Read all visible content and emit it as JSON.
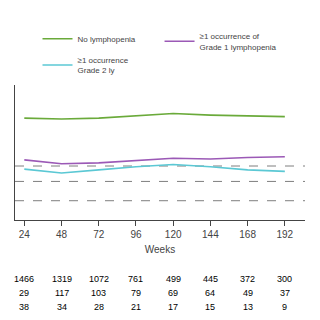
{
  "chart_data": {
    "type": "line",
    "x": [
      24,
      48,
      72,
      96,
      120,
      144,
      168,
      192
    ],
    "series": [
      {
        "name": "No lymphopenia",
        "color": "#6aaa3a",
        "values": [
          1.62,
          1.61,
          1.62,
          1.65,
          1.68,
          1.66,
          1.65,
          1.64
        ]
      },
      {
        "name": "≥1 occurrence of\nGrade 1 lymphopenia",
        "color": "#9b59b6",
        "values": [
          1.08,
          1.03,
          1.04,
          1.07,
          1.1,
          1.09,
          1.11,
          1.12
        ]
      },
      {
        "name": "≥1 occurrence\nGrade 2 ly",
        "color": "#5bc8d4",
        "values": [
          0.96,
          0.91,
          0.95,
          0.99,
          1.02,
          0.99,
          0.95,
          0.93
        ]
      }
    ],
    "reference_lines": {
      "values": [
        1.0,
        0.8,
        0.55
      ],
      "color": "#555555",
      "line_style": "dashed"
    },
    "table": [
      [
        1466,
        1319,
        1072,
        761,
        499,
        445,
        372,
        300
      ],
      [
        29,
        117,
        103,
        79,
        69,
        64,
        49,
        37
      ],
      [
        38,
        34,
        28,
        21,
        17,
        15,
        13,
        9
      ]
    ],
    "xlabel": "Weeks",
    "xlim": [
      18,
      205
    ],
    "xticks": [
      24,
      48,
      72,
      96,
      120,
      144,
      168,
      192
    ],
    "ylim": [
      0.3,
      2.05
    ],
    "yticks": [],
    "tick_labels": "x",
    "grid": false,
    "legend": "top"
  }
}
